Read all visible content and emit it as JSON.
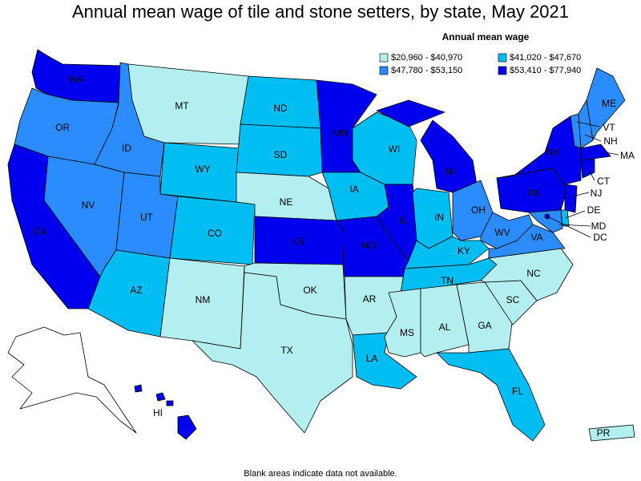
{
  "title": "Annual mean wage of tile and stone setters, by state, May 2021",
  "legend": {
    "title": "Annual mean wage",
    "bins": [
      {
        "label": "$20,960 - $40,970",
        "color": "#b3eef0"
      },
      {
        "label": "$41,020 - $47,670",
        "color": "#00bdf2"
      },
      {
        "label": "$47,780 - $53,150",
        "color": "#2b8cff"
      },
      {
        "label": "$53,410 - $77,940",
        "color": "#0000ee"
      }
    ]
  },
  "states": [
    {
      "abbr": "WA",
      "bin": 3
    },
    {
      "abbr": "OR",
      "bin": 2
    },
    {
      "abbr": "CA",
      "bin": 3
    },
    {
      "abbr": "NV",
      "bin": 2
    },
    {
      "abbr": "ID",
      "bin": 2
    },
    {
      "abbr": "MT",
      "bin": 0
    },
    {
      "abbr": "WY",
      "bin": 1
    },
    {
      "abbr": "UT",
      "bin": 2
    },
    {
      "abbr": "CO",
      "bin": 1
    },
    {
      "abbr": "AZ",
      "bin": 1
    },
    {
      "abbr": "NM",
      "bin": 0
    },
    {
      "abbr": "ND",
      "bin": 1
    },
    {
      "abbr": "SD",
      "bin": 1
    },
    {
      "abbr": "NE",
      "bin": 0
    },
    {
      "abbr": "KS",
      "bin": 3
    },
    {
      "abbr": "OK",
      "bin": 0
    },
    {
      "abbr": "TX",
      "bin": 0
    },
    {
      "abbr": "MN",
      "bin": 3
    },
    {
      "abbr": "IA",
      "bin": 1
    },
    {
      "abbr": "MO",
      "bin": 3
    },
    {
      "abbr": "AR",
      "bin": 0
    },
    {
      "abbr": "LA",
      "bin": 1
    },
    {
      "abbr": "WI",
      "bin": 1
    },
    {
      "abbr": "IL",
      "bin": 3
    },
    {
      "abbr": "MI",
      "bin": 3
    },
    {
      "abbr": "IN",
      "bin": 1
    },
    {
      "abbr": "OH",
      "bin": 2
    },
    {
      "abbr": "KY",
      "bin": 1
    },
    {
      "abbr": "TN",
      "bin": 1
    },
    {
      "abbr": "MS",
      "bin": 0
    },
    {
      "abbr": "AL",
      "bin": 0
    },
    {
      "abbr": "GA",
      "bin": 0
    },
    {
      "abbr": "FL",
      "bin": 1
    },
    {
      "abbr": "SC",
      "bin": 0
    },
    {
      "abbr": "NC",
      "bin": 0
    },
    {
      "abbr": "VA",
      "bin": 2
    },
    {
      "abbr": "WV",
      "bin": 2
    },
    {
      "abbr": "PA",
      "bin": 3
    },
    {
      "abbr": "NY",
      "bin": 3
    },
    {
      "abbr": "VT",
      "bin": 2
    },
    {
      "abbr": "NH",
      "bin": 2
    },
    {
      "abbr": "ME",
      "bin": 2
    },
    {
      "abbr": "MA",
      "bin": 3
    },
    {
      "abbr": "CT",
      "bin": 3
    },
    {
      "abbr": "NJ",
      "bin": 3
    },
    {
      "abbr": "DE",
      "bin": 1
    },
    {
      "abbr": "MD",
      "bin": 2
    },
    {
      "abbr": "DC",
      "bin": 3
    },
    {
      "abbr": "HI",
      "bin": 3
    },
    {
      "abbr": "PR",
      "bin": 0
    }
  ],
  "footnote": "Blank areas indicate data not available."
}
